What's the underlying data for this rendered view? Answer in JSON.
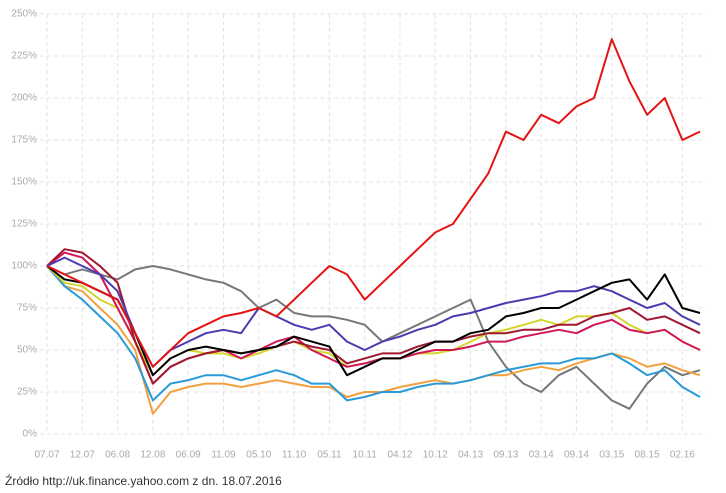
{
  "chart_data": {
    "type": "line",
    "source": "Źródło http://uk.finance.yahoo.com z dn. 18.07.2016",
    "categories": [
      "07.07",
      null,
      "12.07",
      null,
      "06.08",
      null,
      "12.08",
      null,
      "06.09",
      null,
      "11.09",
      null,
      "05.10",
      null,
      "11.10",
      null,
      "05.11",
      null,
      "10.11",
      null,
      "04.12",
      null,
      "10.12",
      null,
      "04.13",
      null,
      "09.13",
      null,
      "03.14",
      null,
      "09.14",
      null,
      "03.15",
      null,
      "08.15",
      null,
      "02.16",
      null
    ],
    "ylim": [
      0,
      250
    ],
    "yticks": [
      {
        "value": 0,
        "label": "0%"
      },
      {
        "value": 25,
        "label": "25%"
      },
      {
        "value": 50,
        "label": "50%"
      },
      {
        "value": 75,
        "label": "75%"
      },
      {
        "value": 100,
        "label": "100%"
      },
      {
        "value": 125,
        "label": "125%"
      },
      {
        "value": 150,
        "label": "150%"
      },
      {
        "value": 175,
        "label": "175%"
      },
      {
        "value": 200,
        "label": "200%"
      },
      {
        "value": 225,
        "label": "225%"
      },
      {
        "value": 250,
        "label": "250%"
      }
    ],
    "grid": true,
    "series": [
      {
        "color": "#777777",
        "values": [
          100,
          95,
          98,
          95,
          92,
          98,
          100,
          98,
          95,
          92,
          90,
          85,
          75,
          80,
          72,
          70,
          70,
          68,
          65,
          55,
          60,
          65,
          70,
          75,
          80,
          55,
          40,
          30,
          25,
          35,
          40,
          30,
          20,
          15,
          30,
          40,
          35,
          38
        ]
      },
      {
        "color": "#f2a040",
        "values": [
          100,
          88,
          85,
          75,
          65,
          50,
          12,
          25,
          28,
          30,
          30,
          28,
          30,
          32,
          30,
          28,
          28,
          22,
          25,
          25,
          28,
          30,
          32,
          30,
          32,
          35,
          35,
          38,
          40,
          38,
          42,
          45,
          48,
          45,
          40,
          42,
          38,
          35
        ]
      },
      {
        "color": "#2a9ad8",
        "values": [
          100,
          88,
          80,
          70,
          60,
          45,
          20,
          30,
          32,
          35,
          35,
          32,
          35,
          38,
          35,
          30,
          30,
          20,
          22,
          25,
          25,
          28,
          30,
          30,
          32,
          35,
          38,
          40,
          42,
          42,
          45,
          45,
          48,
          42,
          35,
          38,
          28,
          22
        ]
      },
      {
        "color": "#d4d42a",
        "values": [
          100,
          90,
          88,
          80,
          75,
          55,
          35,
          45,
          50,
          48,
          48,
          45,
          48,
          52,
          55,
          50,
          48,
          40,
          42,
          45,
          45,
          48,
          48,
          50,
          55,
          60,
          62,
          65,
          68,
          65,
          70,
          70,
          72,
          65,
          60,
          62,
          55,
          50
        ]
      },
      {
        "color": "#d01858",
        "values": [
          100,
          108,
          105,
          95,
          75,
          55,
          30,
          40,
          45,
          48,
          50,
          45,
          50,
          55,
          58,
          50,
          45,
          40,
          42,
          45,
          45,
          48,
          50,
          50,
          52,
          55,
          55,
          58,
          60,
          62,
          60,
          65,
          68,
          62,
          60,
          62,
          55,
          50
        ]
      },
      {
        "color": "#a01830",
        "values": [
          100,
          110,
          108,
          100,
          90,
          55,
          30,
          40,
          45,
          48,
          50,
          48,
          50,
          52,
          55,
          52,
          50,
          42,
          45,
          48,
          48,
          52,
          55,
          55,
          58,
          60,
          60,
          62,
          62,
          65,
          65,
          70,
          72,
          75,
          68,
          70,
          65,
          60
        ]
      },
      {
        "color": "#4a3cb0",
        "values": [
          100,
          105,
          100,
          95,
          85,
          60,
          40,
          50,
          55,
          60,
          62,
          60,
          75,
          70,
          65,
          62,
          65,
          55,
          50,
          55,
          58,
          62,
          65,
          70,
          72,
          75,
          78,
          80,
          82,
          85,
          85,
          88,
          85,
          80,
          75,
          78,
          70,
          65
        ]
      },
      {
        "color": "#000000",
        "values": [
          100,
          92,
          90,
          85,
          80,
          60,
          35,
          45,
          50,
          52,
          50,
          48,
          50,
          52,
          58,
          55,
          52,
          35,
          40,
          45,
          45,
          50,
          55,
          55,
          60,
          62,
          70,
          72,
          75,
          75,
          80,
          85,
          90,
          92,
          80,
          95,
          75,
          72
        ]
      },
      {
        "color": "#e41414",
        "values": [
          100,
          95,
          90,
          85,
          80,
          60,
          40,
          50,
          60,
          65,
          70,
          72,
          75,
          70,
          80,
          90,
          100,
          95,
          80,
          90,
          100,
          110,
          120,
          125,
          140,
          155,
          180,
          175,
          190,
          185,
          195,
          200,
          235,
          210,
          190,
          200,
          175,
          180
        ]
      }
    ]
  }
}
